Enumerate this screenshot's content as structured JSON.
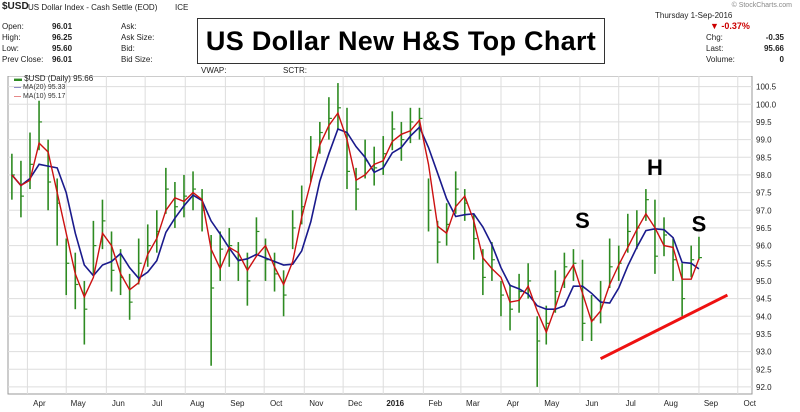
{
  "header": {
    "symbol": "$USD",
    "name": "US Dollar Index - Cash Settle (EOD)",
    "exchange": "ICE",
    "date": "Thursday  1-Sep-2016",
    "watermark": "© StockCharts.com",
    "open_label": "Open:",
    "open_value": "96.01",
    "high_label": "High:",
    "high_value": "96.25",
    "low_label": "Low:",
    "low_value": "95.60",
    "prev_close_label": "Prev Close:",
    "prev_close_value": "96.01",
    "ask_label": "Ask:",
    "ask_size_label": "Ask Size:",
    "bid_label": "Bid:",
    "bid_size_label": "Bid Size:",
    "vwap_label": "VWAP:",
    "sctr_label": "SCTR:",
    "change_pct": "▼ -0.37%",
    "chg_label": "Chg:",
    "chg_value": "-0.35",
    "last_label": "Last:",
    "last_value": "95.66",
    "volume_label": "Volume:",
    "volume_value": "0"
  },
  "legend": {
    "price": "$USD (Daily) 95.66",
    "ma20": "MA(20) 95.33",
    "ma10": "MA(10) 95.17"
  },
  "banner_title": "US Dollar New H&S Top Chart",
  "annotations": {
    "left_shoulder": "S",
    "head": "H",
    "right_shoulder": "S"
  },
  "colors": {
    "price_bars": "#2e8b22",
    "ma20": "#1a1a8c",
    "ma10": "#cc1111",
    "neckline": "#ee1111",
    "grid": "#dddddd",
    "change_negative": "#cc0000"
  },
  "chart_data": {
    "type": "line",
    "title": "US Dollar New H&S Top Chart",
    "ylim": [
      91.8,
      100.8
    ],
    "y_ticks": [
      92.0,
      92.5,
      93.0,
      93.5,
      94.0,
      94.5,
      95.0,
      95.5,
      96.0,
      96.5,
      97.0,
      97.5,
      98.0,
      98.5,
      99.0,
      99.5,
      100.0,
      100.5
    ],
    "month_labels": [
      "Apr",
      "May",
      "Jun",
      "Jul",
      "Aug",
      "Sep",
      "Oct",
      "Nov",
      "Dec",
      "2016",
      "Feb",
      "Mar",
      "Apr",
      "May",
      "Jun",
      "Jul",
      "Aug",
      "Sep",
      "Oct"
    ],
    "grid": true,
    "price_series": {
      "name": "$USD (Daily) 95.66",
      "x": [
        "2015-03-20",
        "2015-03-27",
        "2015-04-03",
        "2015-04-10",
        "2015-04-17",
        "2015-04-24",
        "2015-05-01",
        "2015-05-08",
        "2015-05-15",
        "2015-05-22",
        "2015-05-29",
        "2015-06-05",
        "2015-06-12",
        "2015-06-19",
        "2015-06-26",
        "2015-07-03",
        "2015-07-10",
        "2015-07-17",
        "2015-07-24",
        "2015-07-31",
        "2015-08-07",
        "2015-08-14",
        "2015-08-21",
        "2015-08-28",
        "2015-09-04",
        "2015-09-11",
        "2015-09-18",
        "2015-09-25",
        "2015-10-02",
        "2015-10-09",
        "2015-10-16",
        "2015-10-23",
        "2015-10-30",
        "2015-11-06",
        "2015-11-13",
        "2015-11-20",
        "2015-11-27",
        "2015-12-04",
        "2015-12-11",
        "2015-12-18",
        "2015-12-25",
        "2016-01-01",
        "2016-01-08",
        "2016-01-15",
        "2016-01-22",
        "2016-01-29",
        "2016-02-05",
        "2016-02-12",
        "2016-02-19",
        "2016-02-26",
        "2016-03-04",
        "2016-03-11",
        "2016-03-18",
        "2016-03-25",
        "2016-04-01",
        "2016-04-08",
        "2016-04-15",
        "2016-04-22",
        "2016-04-29",
        "2016-05-06",
        "2016-05-13",
        "2016-05-20",
        "2016-05-27",
        "2016-06-03",
        "2016-06-10",
        "2016-06-17",
        "2016-06-24",
        "2016-07-01",
        "2016-07-08",
        "2016-07-15",
        "2016-07-22",
        "2016-07-29",
        "2016-08-05",
        "2016-08-12",
        "2016-08-19",
        "2016-08-26",
        "2016-09-01"
      ],
      "close": [
        98.0,
        97.4,
        98.3,
        99.5,
        97.8,
        97.2,
        95.5,
        94.9,
        94.2,
        96.0,
        96.7,
        95.3,
        95.1,
        94.4,
        95.5,
        96.0,
        96.4,
        97.6,
        97.1,
        97.4,
        97.6,
        97.0,
        94.8,
        95.9,
        96.0,
        95.6,
        95.0,
        96.4,
        95.6,
        95.2,
        94.6,
        96.5,
        97.1,
        98.5,
        99.2,
        99.6,
        99.9,
        98.1,
        97.6,
        98.4,
        98.2,
        98.6,
        99.3,
        99.0,
        99.5,
        99.6,
        97.0,
        96.1,
        96.6,
        97.6,
        97.2,
        96.2,
        95.1,
        95.6,
        94.6,
        94.2,
        94.7,
        95.0,
        93.3,
        93.8,
        94.7,
        95.4,
        95.5,
        93.8,
        93.9,
        94.4,
        95.4,
        95.5,
        96.4,
        96.5,
        97.3,
        95.7,
        96.3,
        95.6,
        94.5,
        95.6,
        95.66
      ],
      "high": [
        98.6,
        98.4,
        99.2,
        100.1,
        99.0,
        97.9,
        96.2,
        95.8,
        95.0,
        96.7,
        97.3,
        96.4,
        95.9,
        95.2,
        96.2,
        96.6,
        97.0,
        98.2,
        97.8,
        98.0,
        98.1,
        97.6,
        96.3,
        96.4,
        96.5,
        96.1,
        95.8,
        96.8,
        96.2,
        95.8,
        95.3,
        97.0,
        97.7,
        99.1,
        99.5,
        100.2,
        100.6,
        99.9,
        98.2,
        99.0,
        98.8,
        99.1,
        99.8,
        99.5,
        99.9,
        99.9,
        97.9,
        96.7,
        97.2,
        98.1,
        97.6,
        96.9,
        95.9,
        96.1,
        95.0,
        94.9,
        95.2,
        95.5,
        94.0,
        94.3,
        95.3,
        95.8,
        95.9,
        95.6,
        94.6,
        95.0,
        96.2,
        96.0,
        96.9,
        97.0,
        97.6,
        97.3,
        96.8,
        96.2,
        95.5,
        96.0,
        96.25
      ],
      "low": [
        97.3,
        96.8,
        97.6,
        98.7,
        97.0,
        96.0,
        94.6,
        94.2,
        93.2,
        95.2,
        95.9,
        94.7,
        94.6,
        93.9,
        94.9,
        95.4,
        95.8,
        96.9,
        96.5,
        96.8,
        97.0,
        96.4,
        92.6,
        95.0,
        95.4,
        95.0,
        94.3,
        95.7,
        95.0,
        94.7,
        94.0,
        95.9,
        96.6,
        97.8,
        98.6,
        99.0,
        99.3,
        97.6,
        97.0,
        97.9,
        97.7,
        98.0,
        98.7,
        98.4,
        98.9,
        99.0,
        96.4,
        95.5,
        96.0,
        96.9,
        96.7,
        95.6,
        94.6,
        95.0,
        94.0,
        93.6,
        94.1,
        94.5,
        92.0,
        93.2,
        94.1,
        94.8,
        95.0,
        93.3,
        93.3,
        93.8,
        94.8,
        95.0,
        95.8,
        95.9,
        96.7,
        95.2,
        95.7,
        95.0,
        94.0,
        95.1,
        95.6
      ]
    },
    "ma_series": [
      {
        "name": "MA(20) 95.33",
        "window": 4
      },
      {
        "name": "MA(10) 95.17",
        "window": 2
      }
    ],
    "annotations": [
      {
        "text": "S",
        "x": "2016-06-03",
        "y": 96.5
      },
      {
        "text": "H",
        "x": "2016-07-29",
        "y": 98.0
      },
      {
        "text": "S",
        "x": "2016-09-01",
        "y": 96.4
      }
    ],
    "neckline": {
      "x": [
        "2016-06-17",
        "2016-09-23"
      ],
      "y": [
        92.8,
        94.6
      ]
    }
  }
}
